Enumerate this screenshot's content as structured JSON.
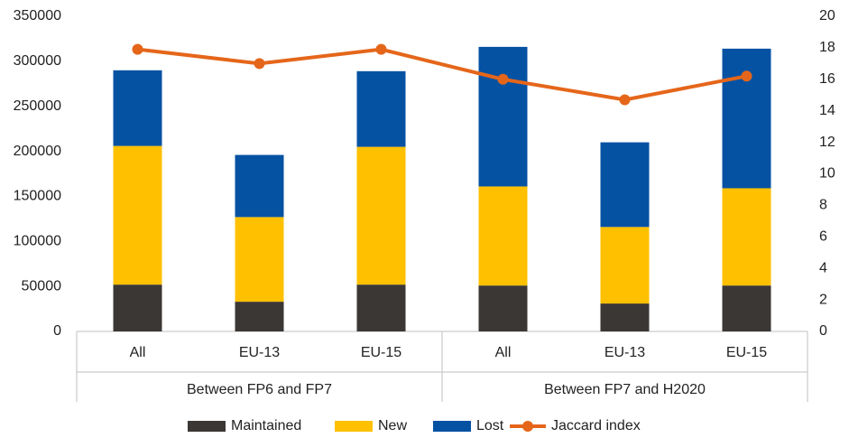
{
  "chart_data": {
    "type": "bar-line",
    "groups": [
      {
        "label": "Between FP6 and FP7",
        "categories": [
          "All",
          "EU-13",
          "EU-15"
        ]
      },
      {
        "label": "Between FP7 and H2020",
        "categories": [
          "All",
          "EU-13",
          "EU-15"
        ]
      }
    ],
    "series": [
      {
        "name": "Maintained",
        "type": "bar",
        "color": "#3b3735",
        "values": [
          52000,
          33000,
          52000,
          51000,
          31000,
          51000
        ]
      },
      {
        "name": "New",
        "type": "bar",
        "color": "#ffc000",
        "values": [
          154000,
          94000,
          153000,
          110000,
          85000,
          108000
        ]
      },
      {
        "name": "Lost",
        "type": "bar",
        "color": "#0552a3",
        "values": [
          84000,
          69000,
          84000,
          155000,
          94000,
          155000
        ]
      },
      {
        "name": "Jaccard index",
        "type": "line",
        "axis": "y2",
        "color": "#e5661a",
        "values": [
          17.9,
          17.0,
          17.9,
          16.0,
          14.7,
          16.2
        ]
      }
    ],
    "ylim": [
      0,
      350000
    ],
    "yticks": [
      0,
      50000,
      100000,
      150000,
      200000,
      250000,
      300000,
      350000
    ],
    "y2lim": [
      0,
      20
    ],
    "y2ticks": [
      0,
      2,
      4,
      6,
      8,
      10,
      12,
      14,
      16,
      18,
      20
    ],
    "legend": "bottom"
  }
}
